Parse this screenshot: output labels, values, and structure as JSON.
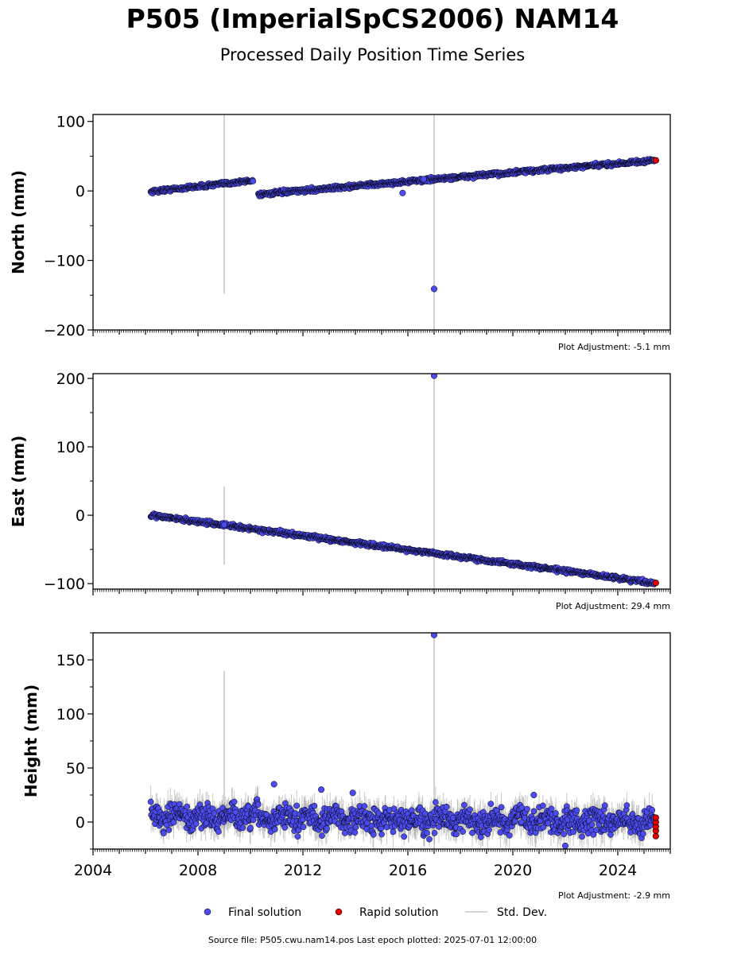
{
  "title": "P505 (ImperialSpCS2006) NAM14",
  "subtitle": "Processed Daily Position Time Series",
  "footer": "Source file: P505.cwu.nam14.pos  Last epoch plotted: 2025-07-01 12:00:00",
  "colors": {
    "final": "#4b4bef",
    "rapid": "#e00000",
    "std_dev": "#c8c8c8",
    "edge": "#000000"
  },
  "chart_data": [
    {
      "type": "scatter",
      "name": "north",
      "ylabel": "North (mm)",
      "adjustment": "Plot Adjustment: -5.1 mm",
      "xlim": [
        2004,
        2026
      ],
      "ylim": [
        -200,
        110
      ],
      "yticks": [
        -200,
        -100,
        0,
        100
      ],
      "xtick_labels": false,
      "trend": [
        {
          "x": [
            2006.2,
            2010.1
          ],
          "y": [
            -1,
            15
          ],
          "noise": 2
        },
        {
          "x": [
            2010.3,
            2025.4
          ],
          "y": [
            -5,
            44
          ],
          "noise": 2
        }
      ],
      "outliers": [
        {
          "x": 2015.8,
          "y": -3
        },
        {
          "x": 2017.0,
          "y": -141
        },
        {
          "x": 2016.6,
          "y": 17
        }
      ],
      "gaps": [
        {
          "x": 2009.0,
          "y0": -148,
          "y1": 110
        },
        {
          "x": 2017.0,
          "y0": -200,
          "y1": 110
        }
      ],
      "rapid": [
        {
          "x": 2025.45,
          "y": 44
        }
      ]
    },
    {
      "type": "scatter",
      "name": "east",
      "ylabel": "East (mm)",
      "adjustment": "Plot Adjustment: 29.4 mm",
      "xlim": [
        2004,
        2026
      ],
      "ylim": [
        -108,
        207
      ],
      "yticks": [
        -100,
        0,
        100,
        200
      ],
      "xtick_labels": false,
      "trend": [
        {
          "x": [
            2006.2,
            2025.4
          ],
          "y": [
            0,
            -99
          ],
          "noise": 2
        }
      ],
      "outliers": [
        {
          "x": 2017.0,
          "y": 204
        },
        {
          "x": 2009.0,
          "y": -14
        }
      ],
      "gaps": [
        {
          "x": 2009.0,
          "y0": -72,
          "y1": 42
        },
        {
          "x": 2017.0,
          "y0": -108,
          "y1": 207
        }
      ],
      "rapid": [
        {
          "x": 2025.45,
          "y": -99
        }
      ]
    },
    {
      "type": "scatter",
      "name": "height",
      "ylabel": "Height (mm)",
      "adjustment": "Plot Adjustment: -2.9 mm",
      "xlim": [
        2004,
        2026
      ],
      "ylim": [
        -25,
        175
      ],
      "yticks": [
        0,
        50,
        100,
        150
      ],
      "xticks": [
        2004,
        2008,
        2012,
        2016,
        2020,
        2024
      ],
      "xtick_labels": true,
      "trend": [
        {
          "x": [
            2006.2,
            2025.4
          ],
          "y": [
            5,
            0
          ],
          "noise": 8
        }
      ],
      "outliers": [
        {
          "x": 2010.9,
          "y": 35
        },
        {
          "x": 2012.7,
          "y": 30
        },
        {
          "x": 2013.9,
          "y": 27
        },
        {
          "x": 2017.0,
          "y": 173
        },
        {
          "x": 2020.8,
          "y": 25
        },
        {
          "x": 2022.0,
          "y": -22
        }
      ],
      "gaps": [
        {
          "x": 2009.0,
          "y0": -15,
          "y1": 140
        },
        {
          "x": 2017.0,
          "y0": -25,
          "y1": 175
        }
      ],
      "rapid": [
        {
          "x": 2025.45,
          "y": -13
        },
        {
          "x": 2025.45,
          "y": -8
        },
        {
          "x": 2025.45,
          "y": -4
        },
        {
          "x": 2025.45,
          "y": 0
        },
        {
          "x": 2025.45,
          "y": 4
        }
      ]
    }
  ],
  "legend": {
    "final": "Final solution",
    "rapid": "Rapid solution",
    "std_dev": "Std. Dev."
  }
}
